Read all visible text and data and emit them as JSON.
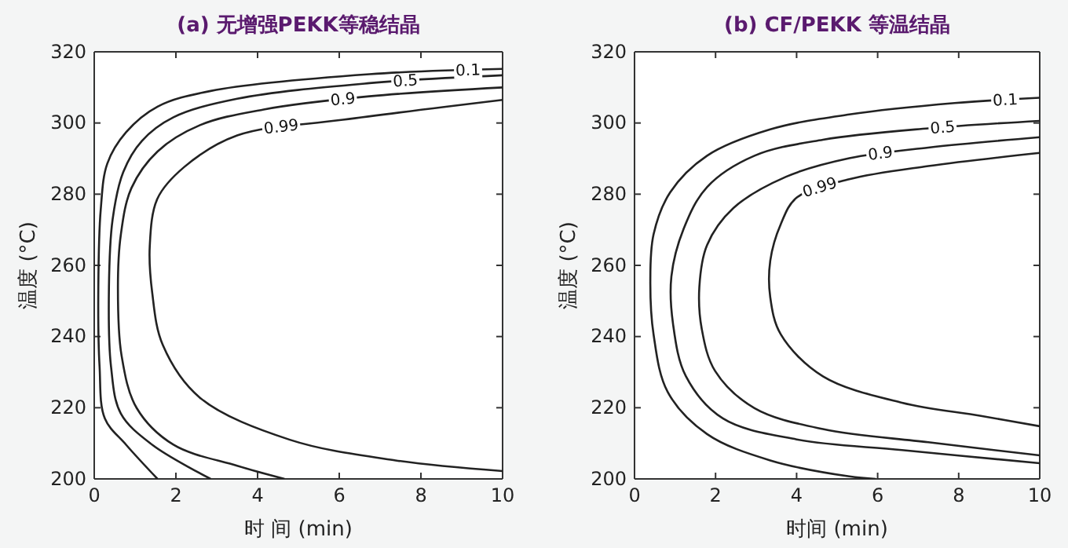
{
  "chart_data": [
    {
      "type": "line",
      "title": "(a) 无增强PEKK等稳结晶",
      "xlabel": "时 间 (min)",
      "ylabel": "温度 (°C)",
      "xlim": [
        0,
        10
      ],
      "ylim": [
        200,
        320
      ],
      "xticks": [
        0,
        2,
        4,
        6,
        8,
        10
      ],
      "yticks": [
        200,
        220,
        240,
        260,
        280,
        300,
        320
      ],
      "grid": false,
      "marker": "none",
      "line_style": "solid",
      "series": [
        {
          "name": "0.1",
          "color": "#222222",
          "x": [
            10,
            6.74,
            2.85,
            1.55,
            0.78,
            0.32,
            0.16,
            0.1,
            0.13,
            0.26,
            0.78,
            1.55
          ],
          "values": [
            315.2,
            313.7,
            309,
            304.6,
            297.4,
            288.6,
            275.8,
            253.8,
            231.7,
            217,
            209.6,
            200
          ]
        },
        {
          "name": "0.5",
          "color": "#222222",
          "x": [
            10,
            6.74,
            3.5,
            1.94,
            1.17,
            0.71,
            0.45,
            0.36,
            0.41,
            0.65,
            1.42,
            2.85
          ],
          "values": [
            313.4,
            311.2,
            306.8,
            301.6,
            295,
            286.2,
            272.9,
            253.8,
            231.7,
            218.4,
            209.6,
            200
          ]
        },
        {
          "name": "0.9",
          "color": "#222222",
          "x": [
            10,
            6.74,
            4.15,
            2.59,
            1.55,
            0.91,
            0.65,
            0.58,
            0.67,
            1.04,
            1.94,
            3.5,
            4.66
          ],
          "values": [
            310,
            307.5,
            303.8,
            299.4,
            292,
            281.7,
            268.5,
            253.8,
            234.6,
            219.9,
            209.6,
            203.7,
            200
          ]
        },
        {
          "name": "0.99",
          "color": "#222222",
          "x": [
            10,
            6.09,
            3.5,
            2.2,
            1.55,
            1.36,
            1.42,
            1.68,
            2.59,
            4.79,
            7.38,
            10
          ],
          "values": [
            306.5,
            300.9,
            296.5,
            287.6,
            278.8,
            265.5,
            252.3,
            237.6,
            222.8,
            211,
            205.2,
            202.2
          ]
        }
      ]
    },
    {
      "type": "line",
      "title": "(b) CF/PEKK 等温结晶",
      "xlabel": "时间 (min)",
      "ylabel": "温度 (°C)",
      "xlim": [
        0,
        10
      ],
      "ylim": [
        200,
        320
      ],
      "xticks": [
        0,
        2,
        4,
        6,
        8,
        10
      ],
      "yticks": [
        200,
        220,
        240,
        260,
        280,
        300,
        320
      ],
      "grid": false,
      "marker": "none",
      "line_style": "solid",
      "series": [
        {
          "name": "0.1",
          "color": "#222222",
          "x": [
            10,
            7.9,
            5.3,
            3.35,
            1.79,
            0.88,
            0.47,
            0.39,
            0.47,
            0.82,
            1.79,
            3.35,
            5.3,
            5.95
          ],
          "values": [
            307.1,
            305.6,
            302.4,
            298.2,
            290.8,
            280.5,
            268.7,
            255.4,
            240.6,
            224.4,
            212.6,
            205.2,
            200.7,
            200
          ]
        },
        {
          "name": "0.5",
          "color": "#222222",
          "x": [
            10,
            7.25,
            4.65,
            2.96,
            1.79,
            1.21,
            0.91,
            0.95,
            1.27,
            2.18,
            4,
            6.6,
            10
          ],
          "values": [
            300.6,
            298.5,
            295.3,
            290.8,
            282,
            270.2,
            256.9,
            243.6,
            228.8,
            217,
            211.1,
            208.1,
            204.4
          ]
        },
        {
          "name": "0.9",
          "color": "#222222",
          "x": [
            10,
            7.25,
            5.3,
            3.74,
            2.44,
            1.79,
            1.6,
            1.66,
            1.99,
            2.96,
            4.65,
            7.25,
            10
          ],
          "values": [
            296,
            293.1,
            290.1,
            284.9,
            276.1,
            265.7,
            253.9,
            242.1,
            230.3,
            219.9,
            214,
            210.3,
            206.6
          ]
        },
        {
          "name": "0.99",
          "color": "#222222",
          "x": [
            10,
            7.25,
            5.3,
            4,
            3.61,
            3.35,
            3.35,
            3.61,
            4.65,
            6.6,
            8.55,
            10
          ],
          "values": [
            291.6,
            287.9,
            284.2,
            279,
            271.6,
            261.3,
            251,
            240.6,
            228.8,
            221.4,
            217.7,
            214.8
          ]
        }
      ]
    }
  ]
}
